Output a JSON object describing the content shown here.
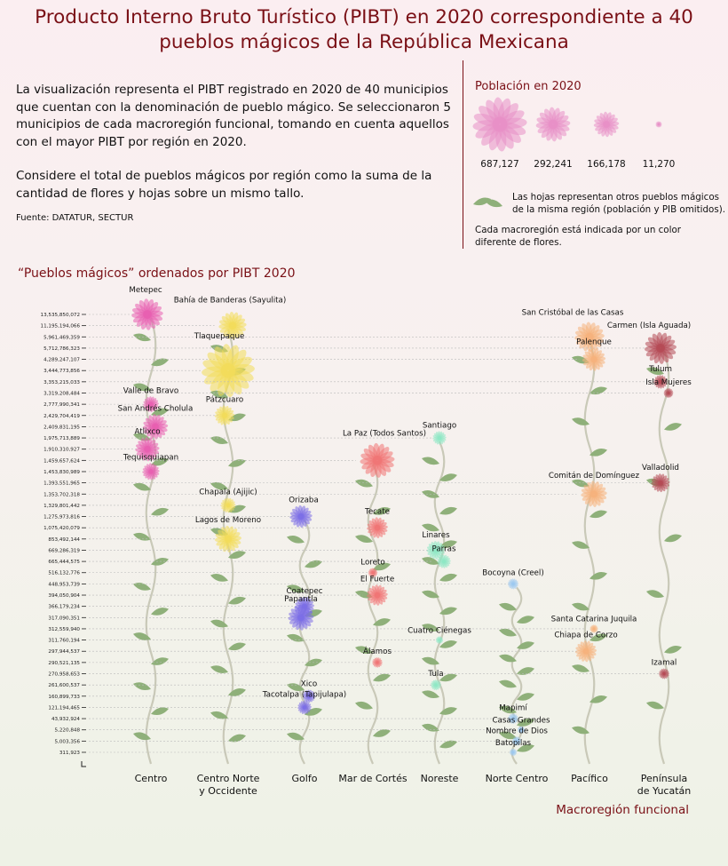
{
  "title": "Producto Interno Bruto Turístico (PIBT) en 2020 correspondiente a 40 pueblos mágicos de la República Mexicana",
  "intro": {
    "p1": "La visualización representa el PIBT registrado en 2020 de 40 municipios que cuentan con la denominación de pueblo mágico. Se seleccionaron 5 municipios de cada macroregión funcional, tomando en cuenta aquellos con el mayor PIBT por región en 2020.",
    "p2": "Considere el total de pueblos mágicos por región como la suma de la cantidad de flores y hojas sobre un mismo tallo.",
    "source": "Fuente: DATATUR, SECTUR"
  },
  "legend": {
    "population_title": "Población en 2020",
    "population_values": [
      "687,127",
      "292,241",
      "166,178",
      "11,270"
    ],
    "leaves_text": "Las hojas representan otros pueblos mágicos de la misma región (población y PIB omitidos).",
    "color_text": "Cada macroregión está indicada por un color diferente de flores."
  },
  "subtitle": "“Pueblos mágicos” ordenados por PIBT 2020",
  "x_title": "Macroregión funcional",
  "chart_data": {
    "type": "scatter",
    "y_ticks": [
      "13,535,850,072",
      "11,195,194,066",
      "5,961,469,359",
      "5,712,786,323",
      "4,289,247,107",
      "3,444,773,856",
      "3,353,215,033",
      "3,319,208,484",
      "2,777,990,341",
      "2,429,704,419",
      "2,409,831,195",
      "1,975,713,889",
      "1,910,310,927",
      "1,459,657,624",
      "1,453,830,989",
      "1,393,551,965",
      "1,353,702,318",
      "1,329,801,442",
      "1,275,973,816",
      "1,075,420,079",
      "853,492,144",
      "669,286,319",
      "665,444,575",
      "516,132,776",
      "448,953,739",
      "394,050,904",
      "366,179,234",
      "317,090,351",
      "312,559,940",
      "311,760,194",
      "297,944,537",
      "290,521,135",
      "270,958,653",
      "261,600,537",
      "160,899,733",
      "121,194,465",
      "43,932,924",
      "5,220,848",
      "5,003,356",
      "311,923"
    ],
    "categories": [
      "Centro",
      "Centro Norte y Occidente",
      "Golfo",
      "Mar de Cortés",
      "Noreste",
      "Norte Centro",
      "Pacífico",
      "Península de Yucatán"
    ],
    "category_colors": [
      "#e85fb0",
      "#f2dc5a",
      "#7b6ee6",
      "#f07575",
      "#8ee8c4",
      "#9cc9f0",
      "#f6b27c",
      "#b54a55"
    ],
    "points": [
      {
        "name": "Metepec",
        "region": 0,
        "pibt": "13,535,850,072",
        "population": 242307
      },
      {
        "name": "Bahía de Banderas (Sayulita)",
        "region": 1,
        "pibt": "11,195,194,066",
        "population": 187632
      },
      {
        "name": "San Cristóbal de las Casas",
        "region": 6,
        "pibt": "5,961,469,359",
        "population": 215874
      },
      {
        "name": "Carmen (Isla Aguada)",
        "region": 7,
        "pibt": "5,712,786,323",
        "population": 248303
      },
      {
        "name": "Palenque",
        "region": 6,
        "pibt": "4,289,247,107",
        "population": 132265
      },
      {
        "name": "Tlaquepaque",
        "region": 1,
        "pibt": "3,444,773,856",
        "population": 687127
      },
      {
        "name": "Tulum",
        "region": 7,
        "pibt": "3,353,215,033",
        "population": 46721
      },
      {
        "name": "Isla Mujeres",
        "region": 7,
        "pibt": "3,319,208,484",
        "population": 22686
      },
      {
        "name": "Valle de Bravo",
        "region": 0,
        "pibt": "2,777,990,341",
        "population": 61590
      },
      {
        "name": "Pátzcuaro",
        "region": 1,
        "pibt": "2,429,704,419",
        "population": 97952
      },
      {
        "name": "San Andrés Cholula",
        "region": 0,
        "pibt": "2,409,831,195",
        "population": 154448
      },
      {
        "name": "Santiago",
        "region": 4,
        "pibt": "1,975,713,889",
        "population": 46784
      },
      {
        "name": "Atlixco",
        "region": 0,
        "pibt": "1,910,310,927",
        "population": 141793
      },
      {
        "name": "La Paz (Todos Santos)",
        "region": 3,
        "pibt": "1,459,657,624",
        "population": 292241
      },
      {
        "name": "Tequisquiapan",
        "region": 0,
        "pibt": "1,453,830,989",
        "population": 72201
      },
      {
        "name": "Valladolid",
        "region": 7,
        "pibt": "1,393,551,965",
        "population": 85460
      },
      {
        "name": "Comitán de Domínguez",
        "region": 6,
        "pibt": "1,353,702,318",
        "population": 166178
      },
      {
        "name": "Chapala (Ajijic)",
        "region": 1,
        "pibt": "1,329,801,442",
        "population": 55663
      },
      {
        "name": "Orizaba",
        "region": 2,
        "pibt": "1,275,973,816",
        "population": 123182
      },
      {
        "name": "Tecate",
        "region": 3,
        "pibt": "1,075,420,079",
        "population": 108440
      },
      {
        "name": "Lagos de Moreno",
        "region": 1,
        "pibt": "853,492,144",
        "population": 172403
      },
      {
        "name": "Linares",
        "region": 4,
        "pibt": "669,286,319",
        "population": 84666
      },
      {
        "name": "Parras",
        "region": 4,
        "pibt": "665,444,575",
        "population": 46454
      },
      {
        "name": "Loreto",
        "region": 3,
        "pibt": "516,132,776",
        "population": 21148
      },
      {
        "name": "Bocoyna (Creel)",
        "region": 5,
        "pibt": "448,953,739",
        "population": 28766
      },
      {
        "name": "El Fuerte",
        "region": 3,
        "pibt": "394,050,904",
        "population": 107179
      },
      {
        "name": "Coatepec",
        "region": 2,
        "pibt": "366,179,234",
        "population": 93911
      },
      {
        "name": "Papantla",
        "region": 2,
        "pibt": "317,090,351",
        "population": 159910
      },
      {
        "name": "Santa Catarina Juquila",
        "region": 6,
        "pibt": "312,559,940",
        "population": 16470
      },
      {
        "name": "Cuatro Ciénegas",
        "region": 4,
        "pibt": "311,760,194",
        "population": 13551
      },
      {
        "name": "Chiapa de Corzo",
        "region": 6,
        "pibt": "297,944,537",
        "population": 112060
      },
      {
        "name": "Álamos",
        "region": 3,
        "pibt": "290,521,135",
        "population": 26484
      },
      {
        "name": "Izamal",
        "region": 7,
        "pibt": "270,958,653",
        "population": 28149
      },
      {
        "name": "Tula",
        "region": 4,
        "pibt": "261,600,537",
        "population": 28034
      },
      {
        "name": "Xico",
        "region": 2,
        "pibt": "160,899,733",
        "population": 41030
      },
      {
        "name": "Tacotalpa (Tapijulapa)",
        "region": 2,
        "pibt": "121,194,465",
        "population": 47905
      },
      {
        "name": "Mapimí",
        "region": 5,
        "pibt": "43,932,924",
        "population": 26723
      },
      {
        "name": "Casas Grandes",
        "region": 5,
        "pibt": "5,220,848",
        "population": 11270
      },
      {
        "name": "Nombre de Dios",
        "region": 5,
        "pibt": "5,003,356",
        "population": 19998
      },
      {
        "name": "Batopilas",
        "region": 5,
        "pibt": "311,923",
        "population": 12890
      }
    ],
    "leaves": [
      17,
      18,
      9,
      10,
      18,
      12,
      13,
      7
    ]
  }
}
